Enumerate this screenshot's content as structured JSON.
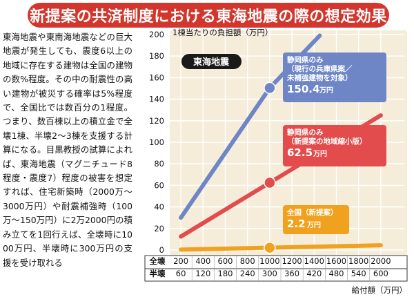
{
  "title": "新提案の共済制度における東海地震の際の想定効果",
  "article": "東海地震や東南海地震などの巨大地震が発生しても、震度6以上の地域に存在する建物は全国の建物の数%程度。その中の耐震性の高い建物が被災する確率は5%程度で、全国比では数百分の1程度。つまり、数百棟以上の積立金で全壊1棟、半壊2〜3棟を支援する計算になる。目黒教授の試算によれば、東海地震（マグニチュード8程度・震度7）程度の被害を想定すれば、住宅新築時（2000万〜3000万円）や耐震補強時（100万〜150万円）に2万2000円の積み立てを1回行えば、全壊時に1000万円、半壊時に300万円の支援を受け取れる",
  "colors": {
    "title_bg": "#d2362d",
    "plot_bg": "#f5ecd9",
    "grid": "#ffffff",
    "hyogo": "#6f86c6",
    "shizuoka": "#e24c4c",
    "national": "#f0a21e",
    "badge_bg": "#1a1a1a"
  },
  "chart_data": {
    "type": "line",
    "ylabel": "1棟当たりの負担額（万円）",
    "xlabel": "給付額（万円）",
    "ylim": [
      0,
      200
    ],
    "yticks": [
      0,
      20,
      40,
      60,
      80,
      100,
      120,
      140,
      160,
      180,
      200
    ],
    "xlim": [
      200,
      2000
    ],
    "x_rows": [
      {
        "label": "全壊",
        "values": [
          "200",
          "400",
          "600",
          "800",
          "1000",
          "1200",
          "1400",
          "1600",
          "1800",
          "2000"
        ]
      },
      {
        "label": "半壊",
        "values": [
          "60",
          "120",
          "180",
          "240",
          "300",
          "360",
          "420",
          "480",
          "540",
          "600"
        ]
      }
    ],
    "x": [
      200,
      400,
      600,
      800,
      1000,
      1200,
      1400,
      1600,
      1800,
      2000
    ],
    "badge": "東海地震",
    "series": [
      {
        "key": "hyogo",
        "color_key": "hyogo",
        "label_lines": [
          "静岡県のみ",
          "（現行の兵庫県案／",
          "未補強建物を対象）"
        ],
        "value_text": "150.4",
        "unit": "万円",
        "points": [
          [
            200,
            30
          ],
          [
            1000,
            150.4
          ],
          [
            1450,
            199
          ]
        ],
        "marker": [
          1000,
          150.4
        ]
      },
      {
        "key": "shizuoka",
        "color_key": "shizuoka",
        "label_lines": [
          "静岡県のみ",
          "（新提案の地域縮小版）"
        ],
        "value_text": "62.5",
        "unit": "万円",
        "points": [
          [
            200,
            12.5
          ],
          [
            1000,
            62.5
          ],
          [
            2000,
            125
          ]
        ],
        "marker": [
          1000,
          62.5
        ]
      },
      {
        "key": "national",
        "color_key": "national",
        "label_lines": [
          "全国（新提案）"
        ],
        "value_text": "2.2",
        "unit": "万円",
        "points": [
          [
            200,
            0.44
          ],
          [
            1000,
            2.2
          ],
          [
            2000,
            4.4
          ]
        ],
        "marker": [
          1000,
          2.2
        ]
      }
    ]
  }
}
